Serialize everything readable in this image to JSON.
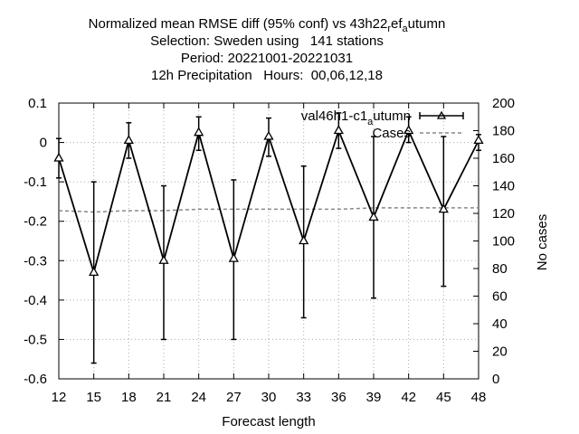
{
  "title_lines": [
    "Normalized mean RMSE diff (95% conf) vs 43h22ref_autumn",
    "Selection: Sweden using   141 stations",
    "Period: 20221001-20221031",
    "12h Precipitation   Hours:  00,06,12,18"
  ],
  "chart_data": {
    "type": "line",
    "title": "Normalized mean RMSE diff (95% conf) vs 43h22ref_autumn",
    "xlabel": "Forecast length",
    "ylabel": "",
    "y2label": "No cases",
    "x": [
      12,
      15,
      18,
      21,
      24,
      27,
      30,
      33,
      36,
      39,
      42,
      45,
      48
    ],
    "xlim": [
      12,
      48
    ],
    "ylim": [
      -0.6,
      0.1
    ],
    "y2lim": [
      0,
      200
    ],
    "x_ticks": [
      "12",
      "15",
      "18",
      "21",
      "24",
      "27",
      "30",
      "33",
      "36",
      "39",
      "42",
      "45",
      "48"
    ],
    "y_ticks": [
      "0.1",
      "0",
      "-0.1",
      "-0.2",
      "-0.3",
      "-0.4",
      "-0.5",
      "-0.6"
    ],
    "y2_ticks": [
      "200",
      "180",
      "160",
      "140",
      "120",
      "100",
      "80",
      "60",
      "40",
      "20",
      "0"
    ],
    "grid": true,
    "legend_position": "top-right",
    "series": [
      {
        "name": "val46h1-c1_autumn",
        "axis": "y",
        "color": "#000000",
        "marker": "triangle",
        "values": [
          -0.04,
          -0.33,
          0.005,
          -0.3,
          0.025,
          -0.295,
          0.015,
          -0.25,
          0.03,
          -0.19,
          0.03,
          -0.17,
          0.005
        ],
        "err_low": [
          -0.09,
          -0.56,
          -0.04,
          -0.5,
          -0.02,
          -0.5,
          -0.035,
          -0.445,
          -0.015,
          -0.395,
          0.0,
          -0.365,
          -0.02
        ],
        "err_high": [
          0.01,
          -0.1,
          0.05,
          -0.11,
          0.065,
          -0.095,
          0.062,
          -0.06,
          0.075,
          0.015,
          0.065,
          0.015,
          0.02
        ]
      },
      {
        "name": "Cases",
        "axis": "y2",
        "color": "#888888",
        "style": "dashed",
        "values": [
          122,
          121,
          122,
          122,
          123,
          123,
          123,
          123,
          123,
          124,
          124,
          124,
          124
        ]
      }
    ]
  }
}
